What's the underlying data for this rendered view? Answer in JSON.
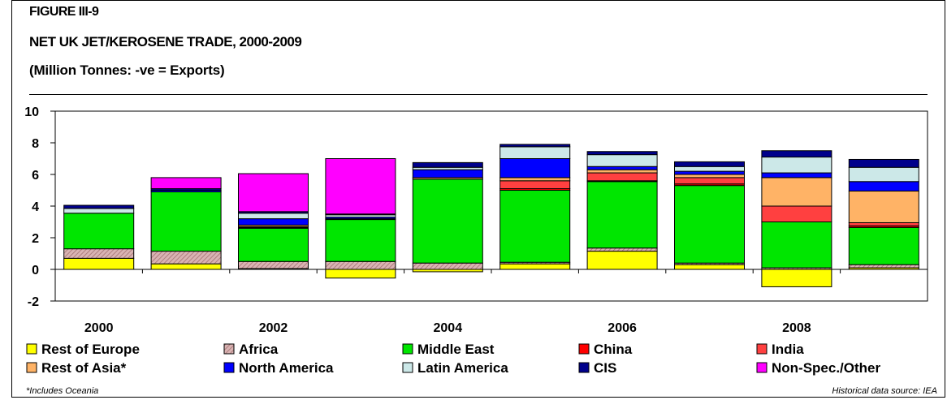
{
  "title": {
    "figure": "FIGURE III-9",
    "main": "NET UK JET/KEROSENE TRADE, 2000-2009",
    "units": "(Million Tonnes: -ve = Exports)"
  },
  "footnote_left": "*Includes Oceania",
  "footnote_right": "Historical data source: IEA",
  "chart_data": {
    "type": "bar",
    "stacked": true,
    "categories": [
      "2000",
      "2001",
      "2002",
      "2003",
      "2004",
      "2005",
      "2006",
      "2007",
      "2008",
      "2009"
    ],
    "x_tick_labels": [
      "2000",
      "",
      "2002",
      "",
      "2004",
      "",
      "2006",
      "",
      "2008",
      ""
    ],
    "ylim": [
      -2,
      10
    ],
    "yticks": [
      -2,
      0,
      2,
      4,
      6,
      8,
      10
    ],
    "grid": false,
    "legend_position": "bottom",
    "series": [
      {
        "name": "Rest of Europe",
        "color": "#ffff00",
        "values": [
          0.7,
          0.35,
          0.05,
          -0.55,
          -0.15,
          0.35,
          1.15,
          0.3,
          -1.1,
          0.1
        ]
      },
      {
        "name": "Africa",
        "color": "#c79c9c",
        "values": [
          0.6,
          0.8,
          0.45,
          0.5,
          0.4,
          0.1,
          0.2,
          0.1,
          0.1,
          0.2
        ]
      },
      {
        "name": "Middle East",
        "color": "#00e600",
        "values": [
          2.25,
          3.75,
          2.1,
          2.65,
          5.3,
          4.55,
          4.2,
          4.9,
          2.9,
          2.35
        ]
      },
      {
        "name": "China",
        "color": "#ff0000",
        "values": [
          0.0,
          0.0,
          0.05,
          0.05,
          0.0,
          0.1,
          0.05,
          0.1,
          0.0,
          0.1
        ]
      },
      {
        "name": "India",
        "color": "#ff4040",
        "values": [
          0.0,
          0.0,
          0.05,
          0.0,
          0.0,
          0.5,
          0.5,
          0.4,
          1.0,
          0.2
        ]
      },
      {
        "name": "Rest of Asia*",
        "color": "#ffb366",
        "values": [
          0.0,
          0.0,
          0.1,
          0.0,
          0.1,
          0.2,
          0.2,
          0.2,
          1.8,
          2.0
        ]
      },
      {
        "name": "North America",
        "color": "#0000ff",
        "values": [
          0.0,
          0.1,
          0.4,
          0.1,
          0.5,
          1.2,
          0.2,
          0.2,
          0.3,
          0.6
        ]
      },
      {
        "name": "Latin America",
        "color": "#cce8e8",
        "values": [
          0.3,
          0.0,
          0.35,
          0.15,
          0.15,
          0.75,
          0.75,
          0.3,
          1.0,
          0.9
        ]
      },
      {
        "name": "CIS",
        "color": "#00008b",
        "values": [
          0.2,
          0.1,
          0.1,
          0.05,
          0.3,
          0.15,
          0.2,
          0.3,
          0.4,
          0.5
        ]
      },
      {
        "name": "Non-Spec./Other",
        "color": "#ff00ff",
        "values": [
          0.0,
          0.7,
          2.4,
          3.5,
          0.0,
          0.0,
          0.0,
          0.0,
          0.0,
          0.0
        ]
      }
    ]
  }
}
